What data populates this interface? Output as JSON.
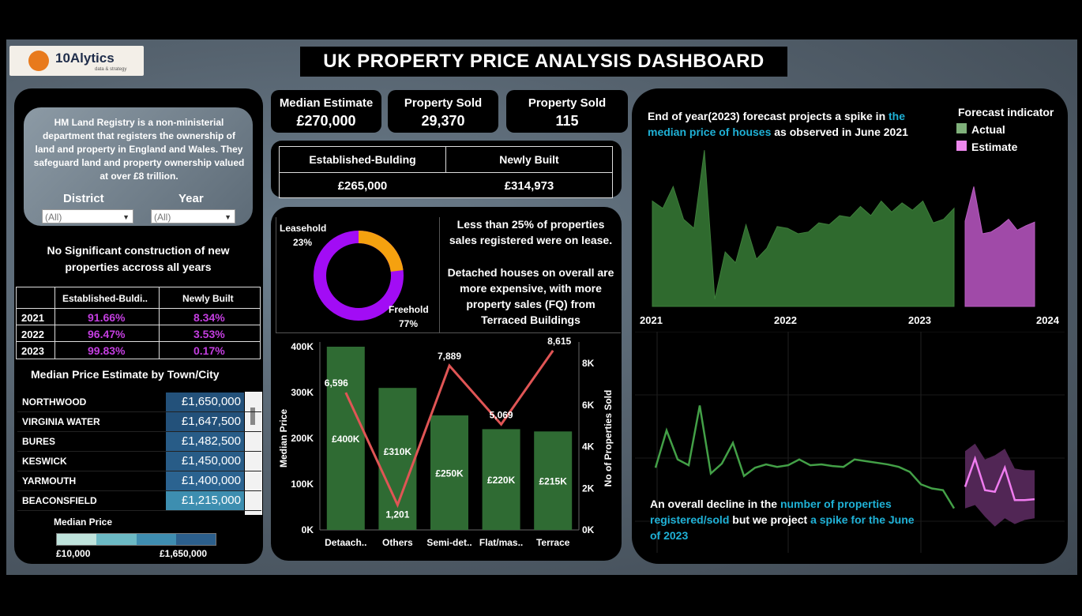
{
  "header": {
    "title": "UK PROPERTY PRICE ANALYSIS DASHBOARD",
    "logo_name": "10Alytics",
    "logo_tagline": "data & strategy"
  },
  "info": {
    "text": "HM Land Registry is a non-ministerial department that registers the ownership of land and property in England and Wales. They safeguard land and property ownership valued at over £8 trillion."
  },
  "filters": {
    "district_label": "District",
    "district_value": "(All)",
    "year_label": "Year",
    "year_value": "(All)"
  },
  "construction": {
    "heading": "No Significant construction of new properties accross all years",
    "col1": "Established-Buldi..",
    "col2": "Newly Built",
    "rows": [
      {
        "year": "2021",
        "established": "91.66%",
        "newly": "8.34%"
      },
      {
        "year": "2022",
        "established": "96.47%",
        "newly": "3.53%"
      },
      {
        "year": "2023",
        "established": "99.83%",
        "newly": "0.17%"
      }
    ]
  },
  "towns": {
    "heading": "Median Price Estimate by Town/City",
    "rows": [
      {
        "name": "NORTHWOOD",
        "price": "£1,650,000",
        "value": 1650000
      },
      {
        "name": "VIRGINIA WATER",
        "price": "£1,647,500",
        "value": 1647500
      },
      {
        "name": "BURES",
        "price": "£1,482,500",
        "value": 1482500
      },
      {
        "name": "KESWICK",
        "price": "£1,450,000",
        "value": 1450000
      },
      {
        "name": "YARMOUTH",
        "price": "£1,400,000",
        "value": 1400000
      },
      {
        "name": "BEACONSFIELD",
        "price": "£1,215,000",
        "value": 1215000
      }
    ],
    "legend_title": "Median Price",
    "legend_min": "£10,000",
    "legend_max": "£1,650,000"
  },
  "kpis": {
    "median_label": "Median Estimate",
    "median_value": "£270,000",
    "sold_label": "Property Sold",
    "sold_value": "29,370",
    "sold2_label": "Property Sold",
    "sold2_value": "115"
  },
  "building_type": {
    "col1": "Established-Bulding",
    "col2": "Newly Built",
    "val1": "£265,000",
    "val2": "£314,973"
  },
  "tenure": {
    "leasehold_label": "Leasehold",
    "leasehold_pct": "23%",
    "freehold_label": "Freehold",
    "freehold_pct": "77%",
    "leasehold_value": 23,
    "freehold_value": 77,
    "note1": "Less than 25% of properties sales registered were on lease.",
    "note2": "Detached houses on overall are more expensive, with more property sales (FQ) from Terraced Buildings",
    "colors": {
      "leasehold": "#f5a10f",
      "freehold": "#a20cf5"
    }
  },
  "chart_data": [
    {
      "type": "bar",
      "categories": [
        "Detaach..",
        "Others",
        "Semi-det..",
        "Flat/mas..",
        "Terrace"
      ],
      "series": [
        {
          "name": "Median Price",
          "values": [
            400000,
            310000,
            250000,
            220000,
            215000
          ],
          "labels": [
            "£400K",
            "£310K",
            "£250K",
            "£220K",
            "£215K"
          ],
          "color": "#2f6b33"
        },
        {
          "name": "No of Properties Sold",
          "values": [
            6596,
            1201,
            7889,
            5069,
            8615
          ],
          "labels": [
            "6,596",
            "1,201",
            "7,889",
            "5,069",
            "8,615"
          ],
          "color": "#e05555",
          "type": "line"
        }
      ],
      "ylabel": "Median Price",
      "y2label": "No of Properties Sold",
      "ylim": [
        0,
        400000
      ],
      "y2lim": [
        0,
        8800
      ],
      "yticks": [
        "0K",
        "100K",
        "200K",
        "300K",
        "400K"
      ],
      "y2ticks": [
        "0K",
        "2K",
        "4K",
        "6K",
        "8K"
      ]
    },
    {
      "type": "area",
      "title": "End of year(2023) forecast projects a spike in the median price of houses as observed in June 2021",
      "legend_title": "Forecast indicator",
      "legend": [
        {
          "name": "Actual",
          "color": "#7fb07a"
        },
        {
          "name": "Estimate",
          "color": "#ee88ee"
        }
      ],
      "xticks": [
        "2021",
        "2022",
        "2023",
        "2024"
      ],
      "actual": [
        290,
        270,
        330,
        240,
        215,
        430,
        20,
        150,
        120,
        225,
        130,
        160,
        220,
        215,
        200,
        205,
        230,
        225,
        250,
        245,
        275,
        250,
        290,
        260,
        285,
        265,
        290,
        230,
        240,
        270
      ],
      "estimate": [
        235,
        330,
        200,
        205,
        220,
        240,
        210,
        222,
        232
      ],
      "grid": false
    },
    {
      "type": "line",
      "title": "An overall decline in the number of properties registered/sold but we project a spike for the June of 2023",
      "actual": [
        1150,
        1600,
        1250,
        1180,
        1900,
        1080,
        1200,
        1450,
        1050,
        1150,
        1190,
        1160,
        1180,
        1250,
        1180,
        1190,
        1170,
        1160,
        1250,
        1230,
        1210,
        1190,
        1160,
        1100,
        950,
        900,
        880,
        660
      ],
      "estimate": [
        920,
        1260,
        880,
        860,
        1150,
        760,
        760,
        770
      ],
      "band_upper": [
        1350,
        1440,
        1250,
        1300,
        1380,
        1140,
        1120,
        1120
      ],
      "band_lower": [
        660,
        700,
        560,
        440,
        540,
        470,
        520,
        540
      ],
      "grid": true
    }
  ],
  "forecast_text": {
    "top_a": "End of year(2023) forecast projects a spike in ",
    "top_b": "the median price of houses",
    "top_c": " as observed in June 2021",
    "bottom_a": "An overall decline in the ",
    "bottom_b": "number of properties registered/sold",
    "bottom_c": " but we project ",
    "bottom_d": "a spike for the June of 2023",
    "legend_title": "Forecast indicator",
    "actual_label": "Actual",
    "estimate_label": "Estimate",
    "x_2021": "2021",
    "x_2022": "2022",
    "x_2023": "2023",
    "x_2024": "2024"
  }
}
